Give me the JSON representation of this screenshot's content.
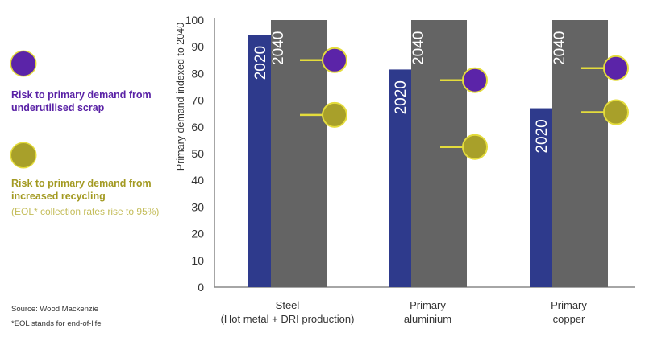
{
  "chart_data": {
    "type": "bar",
    "ylabel": "Primary demand indexed  to 2040",
    "ylim": [
      0,
      100
    ],
    "yticks": [
      0,
      10,
      20,
      30,
      40,
      50,
      60,
      70,
      80,
      90,
      100
    ],
    "grid": false,
    "categories": [
      [
        "Steel",
        "(Hot metal + DRI production)"
      ],
      [
        "Primary",
        "aluminium"
      ],
      [
        "Primary",
        "copper"
      ]
    ],
    "series": [
      {
        "name": "2020",
        "color": "#2e3a8c",
        "values": [
          94.5,
          81.5,
          67
        ]
      },
      {
        "name": "2040",
        "color": "#646464",
        "values": [
          100,
          100,
          100
        ]
      }
    ],
    "markers": [
      {
        "name": "Risk to primary demand from underutilised scrap",
        "color": "#5b24a8",
        "values": [
          85,
          77.5,
          82
        ]
      },
      {
        "name": "Risk to primary demand from increased recycling",
        "color": "#a8a02a",
        "values": [
          64.5,
          52.5,
          65.5
        ]
      }
    ],
    "marker_border": "#e4dc3c"
  },
  "legend": {
    "scrap": [
      "Risk to primary demand from",
      "underutilised scrap"
    ],
    "recycling": [
      "Risk to primary demand from",
      "increased recycling"
    ],
    "recycling_note": "(EOL* collection rates rise to 95%)"
  },
  "footer": {
    "source": "Source: Wood Mackenzie",
    "note": "*EOL stands for end-of-life"
  }
}
